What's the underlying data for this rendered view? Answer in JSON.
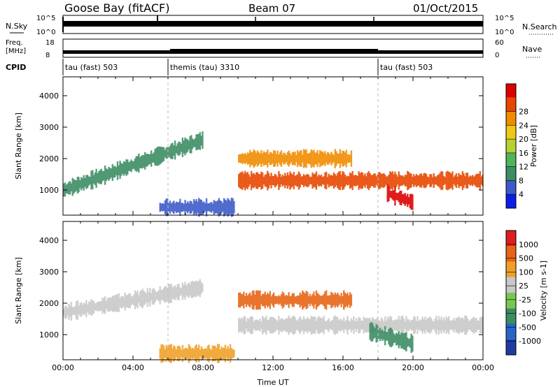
{
  "header": {
    "station": "Goose Bay (fitACF)",
    "beam": "Beam 07",
    "date": "01/Oct/2015"
  },
  "nsky_panel": {
    "left_label": "N.Sky",
    "left_ticks": [
      "10^5",
      "10^0"
    ],
    "right_label": "N.Search",
    "right_ticks": [
      "10^5",
      "10^0"
    ]
  },
  "freq_panel": {
    "left_label_line1": "Freq.",
    "left_label_line2": "[MHz]",
    "left_ticks": [
      "18",
      "8"
    ],
    "right_label": "Nave",
    "right_ticks": [
      "60",
      "0"
    ]
  },
  "cpid": {
    "label": "CPID",
    "modes": [
      {
        "name": "tau (fast) 503",
        "start_hour": 0
      },
      {
        "name": "themis (tau) 3310",
        "start_hour": 6
      },
      {
        "name": "tau (fast) 503",
        "start_hour": 18
      }
    ]
  },
  "chart_data": [
    {
      "type": "heatmap",
      "name": "power",
      "ylabel": "Slant Range [km]",
      "yticks": [
        1000,
        2000,
        3000,
        4000
      ],
      "ylim": [
        200,
        4600
      ],
      "xlim": [
        0,
        24
      ],
      "colorbar": {
        "label": "Power [dB]",
        "ticks": [
          "4",
          "8",
          "12",
          "16",
          "20",
          "24",
          "28"
        ],
        "colors": [
          "#0a1ee6",
          "#3c5ac8",
          "#3c8c64",
          "#50b45a",
          "#b4d232",
          "#f0c814",
          "#f08c00",
          "#e64600",
          "#dc0000"
        ]
      },
      "echo_bands": [
        {
          "t0": 0.0,
          "t1": 8.0,
          "r_start": 1000,
          "r_end": 2600,
          "color": "#3c8c64"
        },
        {
          "t0": 5.5,
          "t1": 9.8,
          "r_start": 450,
          "r_end": 450,
          "color": "#3c5ac8"
        },
        {
          "t0": 10.0,
          "t1": 24.0,
          "r_start": 1300,
          "r_end": 1300,
          "color": "#e64600"
        },
        {
          "t0": 10.0,
          "t1": 16.5,
          "r_start": 2000,
          "r_end": 2000,
          "color": "#f08c00"
        },
        {
          "t0": 18.5,
          "t1": 20.0,
          "r_start": 900,
          "r_end": 600,
          "color": "#dc0000"
        }
      ]
    },
    {
      "type": "heatmap",
      "name": "velocity",
      "xlabel": "Time UT",
      "ylabel": "Slant Range [km]",
      "yticks": [
        1000,
        2000,
        3000,
        4000
      ],
      "ylim": [
        200,
        4600
      ],
      "xlim": [
        0,
        24
      ],
      "xticks": [
        "00:00",
        "04:00",
        "08:00",
        "12:00",
        "16:00",
        "20:00",
        "00:00"
      ],
      "colorbar": {
        "label": "Velocity [m s-1]",
        "ticks": [
          "1000",
          "500",
          "100",
          "25",
          "-25",
          "-100",
          "-500",
          "-1000"
        ],
        "colors": [
          "#1e3ca0",
          "#2864c8",
          "#3c8c64",
          "#78c850",
          "#c8c8c8",
          "#f0a028",
          "#e66414",
          "#dc1e1e"
        ]
      },
      "echo_bands": [
        {
          "t0": 0.0,
          "t1": 8.0,
          "r_start": 1700,
          "r_end": 2500,
          "color": "#c8c8c8"
        },
        {
          "t0": 10.0,
          "t1": 16.5,
          "r_start": 2100,
          "r_end": 2100,
          "color": "#e66414"
        },
        {
          "t0": 10.0,
          "t1": 24.0,
          "r_start": 1300,
          "r_end": 1300,
          "color": "#c8c8c8"
        },
        {
          "t0": 5.5,
          "t1": 9.8,
          "r_start": 400,
          "r_end": 400,
          "color": "#f0a028"
        },
        {
          "t0": 17.5,
          "t1": 20.0,
          "r_start": 1100,
          "r_end": 700,
          "color": "#3c8c64"
        }
      ]
    }
  ]
}
